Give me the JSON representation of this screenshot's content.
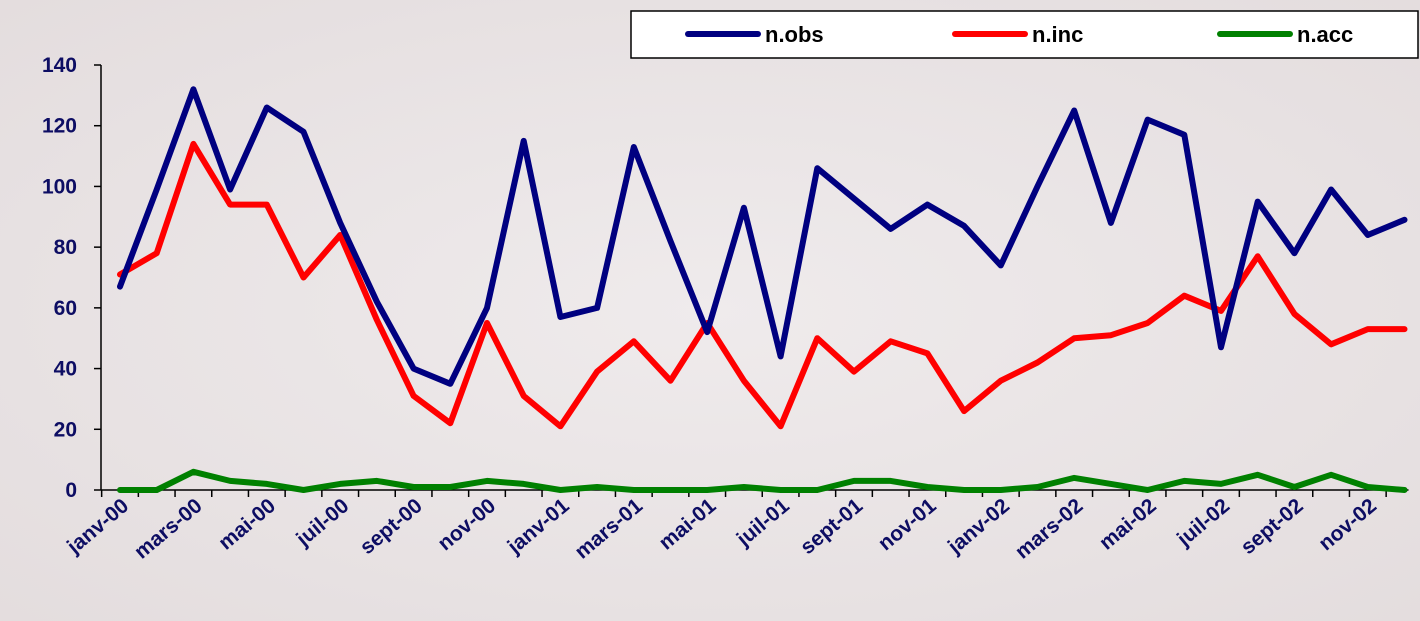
{
  "chart_data": {
    "type": "line",
    "x": [
      "janv-00",
      "févr-00",
      "mars-00",
      "avr-00",
      "mai-00",
      "juin-00",
      "juil-00",
      "août-00",
      "sept-00",
      "oct-00",
      "nov-00",
      "déc-00",
      "janv-01",
      "févr-01",
      "mars-01",
      "avr-01",
      "mai-01",
      "juin-01",
      "juil-01",
      "août-01",
      "sept-01",
      "oct-01",
      "nov-01",
      "déc-01",
      "janv-02",
      "févr-02",
      "mars-02",
      "avr-02",
      "mai-02",
      "juin-02",
      "juil-02",
      "août-02",
      "sept-02",
      "oct-02",
      "nov-02",
      "déc-02"
    ],
    "x_tick_labels": [
      "janv-00",
      "mars-00",
      "mai-00",
      "juil-00",
      "sept-00",
      "nov-00",
      "janv-01",
      "mars-01",
      "mai-01",
      "juil-01",
      "sept-01",
      "nov-01",
      "janv-02",
      "mars-02",
      "mai-02",
      "juil-02",
      "sept-02",
      "nov-02"
    ],
    "series": [
      {
        "name": "n.obs",
        "color": "#000080",
        "values": [
          67,
          99,
          132,
          99,
          126,
          118,
          88,
          62,
          40,
          35,
          60,
          115,
          57,
          60,
          113,
          82,
          52,
          93,
          44,
          106,
          96,
          86,
          94,
          87,
          74,
          100,
          125,
          88,
          122,
          117,
          47,
          95,
          78,
          99,
          84,
          89
        ]
      },
      {
        "name": "n.inc",
        "color": "#ff0000",
        "values": [
          71,
          78,
          114,
          94,
          94,
          70,
          84,
          56,
          31,
          22,
          55,
          31,
          21,
          39,
          49,
          36,
          55,
          36,
          21,
          50,
          39,
          49,
          45,
          26,
          36,
          42,
          50,
          51,
          55,
          64,
          59,
          77,
          58,
          48,
          53,
          53
        ]
      },
      {
        "name": "n.acc",
        "color": "#008000",
        "values": [
          0,
          0,
          6,
          3,
          2,
          0,
          2,
          3,
          1,
          1,
          3,
          2,
          0,
          1,
          0,
          0,
          0,
          1,
          0,
          0,
          3,
          3,
          1,
          0,
          0,
          1,
          4,
          2,
          0,
          3,
          2,
          5,
          1,
          5,
          1,
          0
        ]
      }
    ],
    "ylim": [
      0,
      140
    ],
    "y_ticks": [
      0,
      20,
      40,
      60,
      80,
      100,
      120,
      140
    ],
    "title": "",
    "xlabel": "",
    "ylabel": "",
    "grid": false,
    "legend_position": "top-right"
  }
}
